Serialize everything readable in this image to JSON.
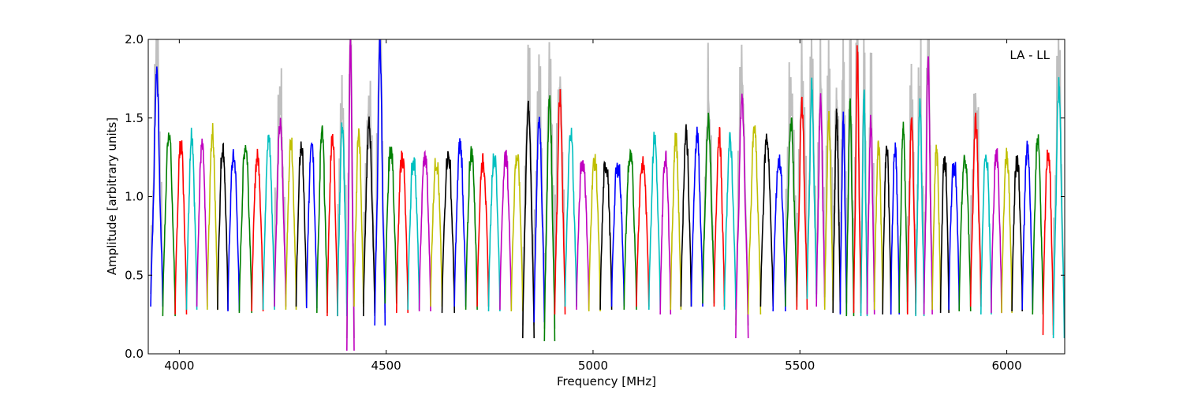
{
  "chart_data": {
    "type": "line",
    "xlabel": "Frequency [MHz]",
    "ylabel": "Amplitude [arbitrary units]",
    "annotation": "LA - LL",
    "legend_position": "top-right",
    "xlim": [
      3925,
      6140
    ],
    "ylim": [
      0.0,
      2.0
    ],
    "x_ticks": [
      4000,
      4500,
      5000,
      5500,
      6000
    ],
    "y_ticks": [
      0.0,
      0.5,
      1.0,
      1.5,
      2.0
    ],
    "x_tick_labels": [
      "4000",
      "4500",
      "5000",
      "5500",
      "6000"
    ],
    "y_tick_labels": [
      "0.0",
      "0.5",
      "1.0",
      "1.5",
      "2.0"
    ],
    "grid": false,
    "colors": {
      "background_trace": "#bfbfbf",
      "palette": [
        "#0000ff",
        "#008000",
        "#ff0000",
        "#00bfbf",
        "#bf00bf",
        "#bfbf00",
        "#000000"
      ]
    },
    "band_centers": [
      3945,
      3975,
      4005,
      4030,
      4055,
      4080,
      4105,
      4130,
      4160,
      4190,
      4215,
      4245,
      4270,
      4295,
      4320,
      4345,
      4370,
      4395,
      4415,
      4430,
      4460,
      4485,
      4510,
      4540,
      4565,
      4595,
      4620,
      4650,
      4680,
      4705,
      4735,
      4760,
      4790,
      4815,
      4845,
      4870,
      4895,
      4920,
      4945,
      4975,
      5005,
      5030,
      5060,
      5090,
      5120,
      5150,
      5175,
      5200,
      5225,
      5250,
      5280,
      5305,
      5330,
      5360,
      5390,
      5420,
      5450,
      5480,
      5505,
      5530,
      5550,
      5570,
      5590,
      5605,
      5620,
      5640,
      5655,
      5670,
      5690,
      5710,
      5730,
      5750,
      5770,
      5790,
      5810,
      5830,
      5850,
      5870,
      5900,
      5925,
      5950,
      5975,
      6000,
      6025,
      6050,
      6075,
      6100,
      6125
    ],
    "band_peak_values": [
      1.82,
      1.42,
      1.34,
      1.41,
      1.32,
      1.42,
      1.31,
      1.25,
      1.33,
      1.25,
      1.38,
      1.46,
      1.36,
      1.32,
      1.38,
      1.41,
      1.39,
      1.45,
      2.0,
      1.42,
      1.46,
      2.0,
      1.3,
      1.25,
      1.22,
      1.25,
      1.22,
      1.26,
      1.34,
      1.28,
      1.22,
      1.25,
      1.25,
      1.25,
      1.6,
      1.5,
      1.62,
      1.64,
      1.42,
      1.22,
      1.22,
      1.2,
      1.18,
      1.25,
      1.2,
      1.38,
      1.25,
      1.38,
      1.42,
      1.4,
      1.48,
      1.4,
      1.36,
      1.62,
      1.43,
      1.38,
      1.22,
      1.48,
      1.58,
      1.7,
      1.62,
      1.5,
      1.52,
      1.5,
      1.6,
      1.95,
      1.65,
      1.48,
      1.32,
      1.3,
      1.3,
      1.42,
      1.48,
      1.6,
      1.9,
      1.28,
      1.22,
      1.2,
      1.22,
      1.5,
      1.25,
      1.28,
      1.26,
      1.22,
      1.3,
      1.38,
      1.28,
      1.7
    ],
    "band_trough_values": [
      0.3,
      0.24,
      0.25,
      0.28,
      0.3,
      0.28,
      0.28,
      0.27,
      0.26,
      0.27,
      0.28,
      0.3,
      0.28,
      0.3,
      0.29,
      0.26,
      0.24,
      0.24,
      0.02,
      0.3,
      0.24,
      0.18,
      0.32,
      0.26,
      0.28,
      0.27,
      0.3,
      0.26,
      0.3,
      0.28,
      0.3,
      0.27,
      0.28,
      0.27,
      0.1,
      0.2,
      0.08,
      0.25,
      0.3,
      0.28,
      0.27,
      0.28,
      0.3,
      0.28,
      0.3,
      0.28,
      0.25,
      0.28,
      0.3,
      0.3,
      0.32,
      0.3,
      0.28,
      0.1,
      0.25,
      0.3,
      0.27,
      0.3,
      0.28,
      0.35,
      0.3,
      0.28,
      0.26,
      0.25,
      0.24,
      0.26,
      0.24,
      0.25,
      0.28,
      0.25,
      0.25,
      0.26,
      0.25,
      0.24,
      0.25,
      0.28,
      0.26,
      0.28,
      0.27,
      0.3,
      0.25,
      0.26,
      0.26,
      0.27,
      0.28,
      0.25,
      0.12,
      0.1
    ]
  }
}
